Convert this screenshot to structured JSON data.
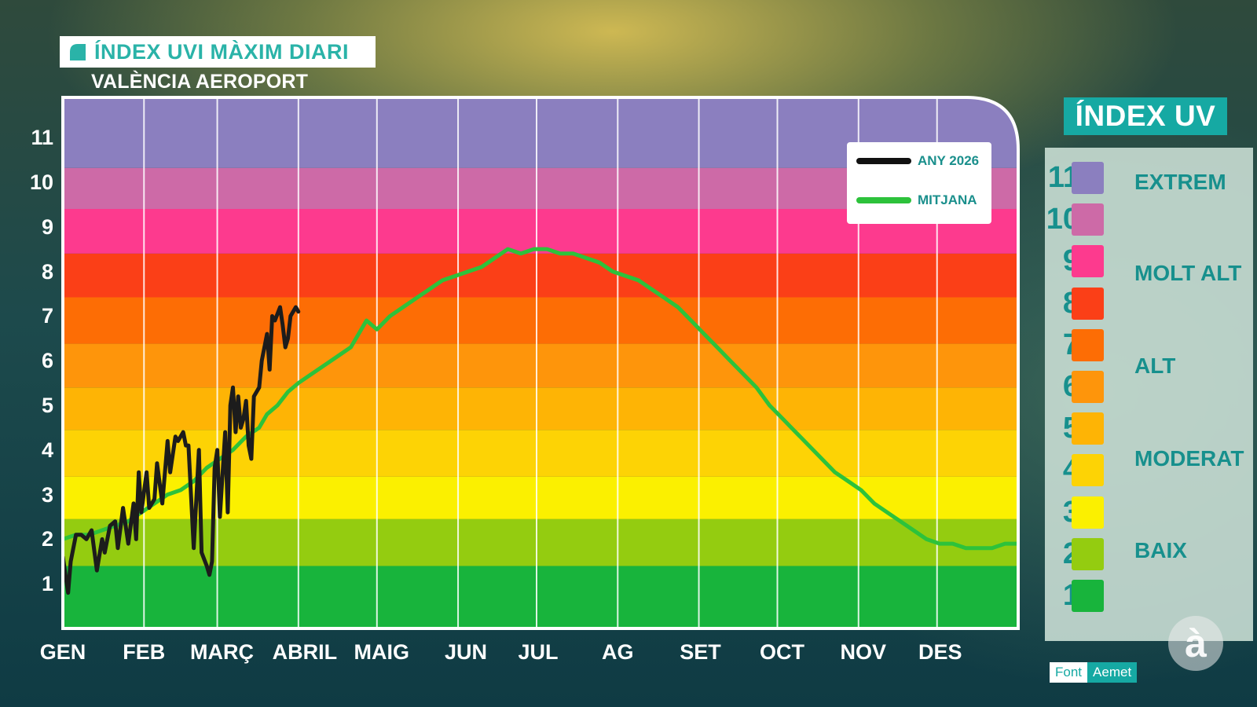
{
  "header": {
    "title": "ÍNDEX UVI MÀXIM DIARI",
    "subtitle": "VALÈNCIA AEROPORT"
  },
  "chart_data": {
    "type": "line",
    "title": "ÍNDEX UVI MÀXIM DIARI",
    "subtitle": "VALÈNCIA AEROPORT",
    "xlabel": "",
    "ylabel": "",
    "x_unit": "day of year",
    "xlim": [
      0,
      365
    ],
    "ylim": [
      0,
      11.9
    ],
    "y_ticks": [
      1,
      2,
      3,
      4,
      5,
      6,
      7,
      8,
      9,
      10,
      11
    ],
    "month_labels": [
      "GEN",
      "FEB",
      "MARÇ",
      "ABRIL",
      "MAIG",
      "JUN",
      "JUL",
      "AG",
      "SET",
      "OCT",
      "NOV",
      "DES"
    ],
    "month_starts": [
      0,
      31,
      59,
      90,
      120,
      151,
      181,
      212,
      243,
      273,
      304,
      334
    ],
    "grid": true,
    "legend_position": "top-right",
    "background_bands": [
      {
        "from": 0,
        "to": 1.4,
        "color": "#18b43c"
      },
      {
        "from": 1.4,
        "to": 2.45,
        "color": "#94cc10"
      },
      {
        "from": 2.45,
        "to": 3.4,
        "color": "#fbf000"
      },
      {
        "from": 3.4,
        "to": 4.45,
        "color": "#fdd305"
      },
      {
        "from": 4.45,
        "to": 5.4,
        "color": "#feb405"
      },
      {
        "from": 5.4,
        "to": 6.38,
        "color": "#fe950b"
      },
      {
        "from": 6.38,
        "to": 7.42,
        "color": "#fd6d05"
      },
      {
        "from": 7.42,
        "to": 8.4,
        "color": "#fb3f17"
      },
      {
        "from": 8.4,
        "to": 9.4,
        "color": "#fd3a8e"
      },
      {
        "from": 9.4,
        "to": 10.32,
        "color": "#cd6aa7"
      },
      {
        "from": 10.32,
        "to": 11.9,
        "color": "#8b7fbf"
      }
    ],
    "series": [
      {
        "name": "ANY 2026",
        "color": "#1c1c1c",
        "x": [
          0,
          2,
          3,
          5,
          7,
          9,
          11,
          13,
          15,
          16,
          18,
          20,
          21,
          23,
          25,
          27,
          28,
          29,
          30,
          32,
          33,
          35,
          36,
          38,
          40,
          41,
          43,
          44,
          46,
          47,
          48,
          50,
          52,
          53,
          55,
          56,
          57,
          58,
          59,
          60,
          62,
          63,
          64,
          65,
          66,
          67,
          68,
          69,
          70,
          71,
          72,
          73,
          75,
          76,
          78,
          79,
          80,
          81,
          83,
          84,
          85,
          86,
          87,
          88,
          89,
          90
        ],
        "y": [
          1.6,
          0.8,
          1.5,
          2.1,
          2.1,
          2.0,
          2.2,
          1.3,
          2.0,
          1.7,
          2.3,
          2.4,
          1.8,
          2.7,
          1.9,
          2.8,
          2.0,
          3.5,
          2.6,
          3.5,
          2.7,
          2.9,
          3.7,
          2.8,
          4.2,
          3.5,
          4.3,
          4.2,
          4.4,
          4.1,
          4.1,
          1.8,
          4.0,
          1.7,
          1.4,
          1.2,
          1.5,
          3.6,
          4.0,
          2.5,
          4.4,
          2.6,
          5.0,
          5.4,
          4.4,
          5.2,
          4.5,
          4.7,
          5.1,
          4.1,
          3.8,
          5.2,
          5.4,
          6.0,
          6.6,
          5.8,
          7.0,
          6.9,
          7.2,
          6.8,
          6.3,
          6.5,
          7.0,
          7.1,
          7.2,
          7.1
        ]
      },
      {
        "name": "MITJANA",
        "color": "#2dc23b",
        "x": [
          0,
          5,
          10,
          15,
          20,
          25,
          30,
          35,
          40,
          45,
          50,
          55,
          60,
          65,
          70,
          75,
          78,
          82,
          86,
          90,
          95,
          100,
          105,
          110,
          113,
          116,
          120,
          125,
          130,
          135,
          140,
          145,
          150,
          155,
          160,
          165,
          170,
          175,
          180,
          185,
          190,
          195,
          200,
          205,
          210,
          215,
          220,
          225,
          230,
          235,
          240,
          245,
          250,
          255,
          260,
          265,
          270,
          275,
          280,
          285,
          290,
          295,
          300,
          305,
          310,
          315,
          320,
          325,
          330,
          335,
          340,
          345,
          350,
          355,
          360,
          365
        ],
        "y": [
          2.0,
          2.1,
          2.1,
          2.2,
          2.3,
          2.4,
          2.6,
          2.8,
          3.0,
          3.1,
          3.3,
          3.6,
          3.8,
          4.0,
          4.3,
          4.5,
          4.8,
          5.0,
          5.3,
          5.5,
          5.7,
          5.9,
          6.1,
          6.3,
          6.6,
          6.9,
          6.7,
          7.0,
          7.2,
          7.4,
          7.6,
          7.8,
          7.9,
          8.0,
          8.1,
          8.3,
          8.5,
          8.4,
          8.5,
          8.5,
          8.4,
          8.4,
          8.3,
          8.2,
          8.0,
          7.9,
          7.8,
          7.6,
          7.4,
          7.2,
          6.9,
          6.6,
          6.3,
          6.0,
          5.7,
          5.4,
          5.0,
          4.7,
          4.4,
          4.1,
          3.8,
          3.5,
          3.3,
          3.1,
          2.8,
          2.6,
          2.4,
          2.2,
          2.0,
          1.9,
          1.9,
          1.8,
          1.8,
          1.8,
          1.9,
          1.9
        ]
      }
    ]
  },
  "legend": {
    "items": [
      {
        "label": "ANY 2026",
        "color": "#111111"
      },
      {
        "label": "MITJANA",
        "color": "#2dc23b"
      }
    ]
  },
  "side_scale": {
    "title": "ÍNDEX UV",
    "levels": [
      {
        "value": "11",
        "color": "#8b7fbf"
      },
      {
        "value": "10",
        "color": "#cd6aa7"
      },
      {
        "value": "9",
        "color": "#fd3a8e"
      },
      {
        "value": "8",
        "color": "#fb3f17"
      },
      {
        "value": "7",
        "color": "#fd6d05"
      },
      {
        "value": "6",
        "color": "#fe950b"
      },
      {
        "value": "5",
        "color": "#feb405"
      },
      {
        "value": "4",
        "color": "#fdd305"
      },
      {
        "value": "3",
        "color": "#fbf000"
      },
      {
        "value": "2",
        "color": "#94cc10"
      },
      {
        "value": "1",
        "color": "#18b43c"
      }
    ],
    "categories": [
      "EXTREM",
      "MOLT ALT",
      "ALT",
      "MODERAT",
      "BAIX"
    ]
  },
  "source": {
    "label": "Font",
    "value": "Aemet"
  },
  "logo": "à"
}
